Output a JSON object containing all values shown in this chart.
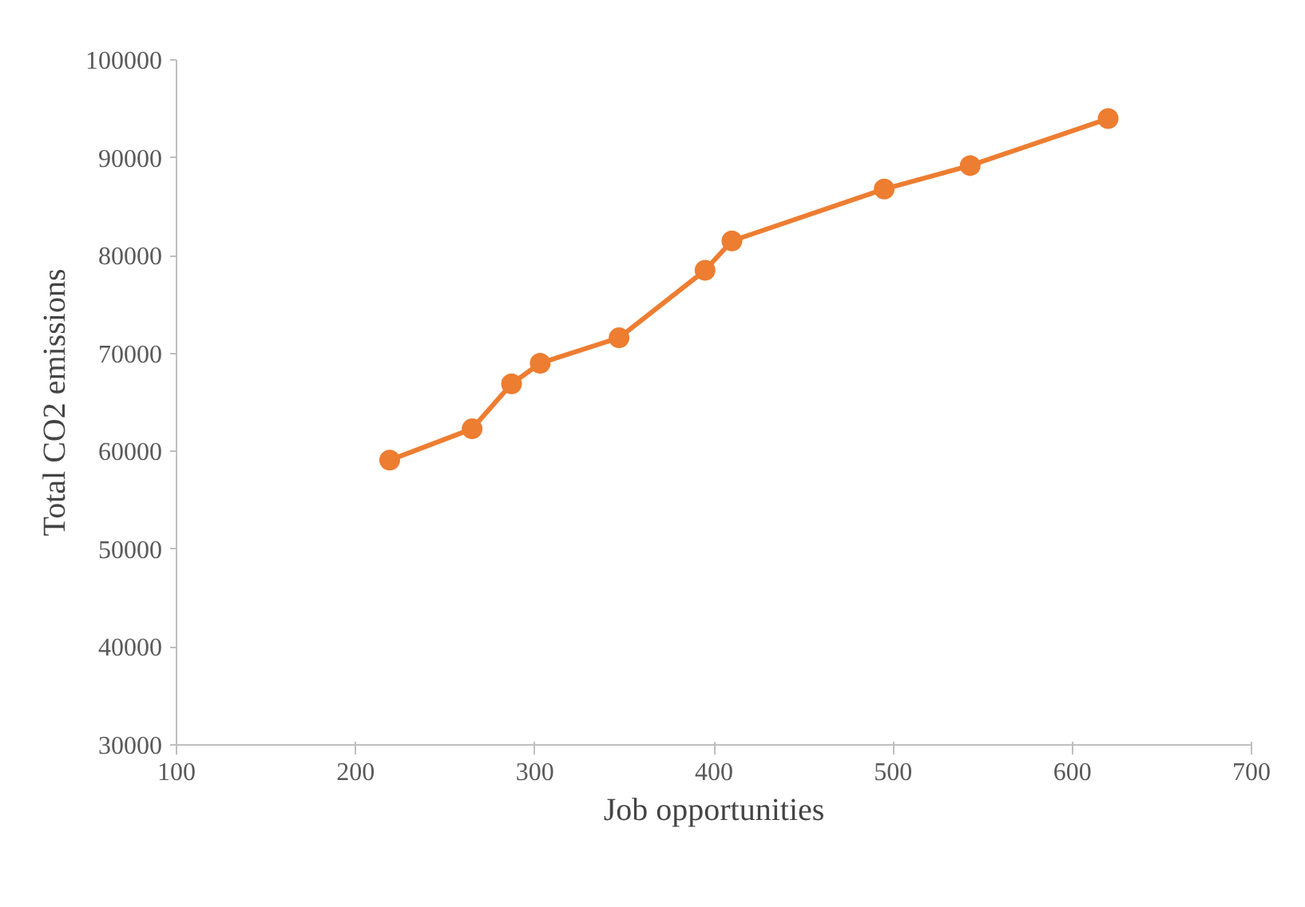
{
  "chart_data": {
    "type": "line",
    "xlabel": "Job opportunities",
    "ylabel": "Total CO2 emissions",
    "x": [
      219,
      265,
      287,
      303,
      347,
      395,
      410,
      495,
      543,
      620
    ],
    "series": [
      {
        "color": "#ed7d31",
        "values": [
          59100,
          62300,
          66900,
          69000,
          71600,
          78500,
          81500,
          86800,
          89200,
          94000
        ]
      }
    ],
    "xlim": [
      100,
      700
    ],
    "xticks": [
      100,
      200,
      300,
      400,
      500,
      600,
      700
    ],
    "ylim": [
      30000,
      100000
    ],
    "yticks": [
      30000,
      40000,
      50000,
      60000,
      70000,
      80000,
      90000,
      100000
    ],
    "grid": false,
    "marker": "circle",
    "line_style": "solid"
  }
}
